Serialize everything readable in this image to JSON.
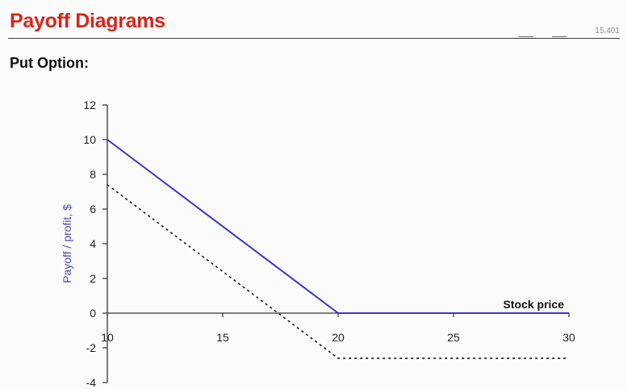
{
  "slide": {
    "title": "Payoff Diagrams",
    "course_code": "15.401",
    "subtitle": "Put Option:"
  },
  "colors": {
    "title": "#d8251c",
    "payoff_line": "#3a35c8",
    "profit_line": "#111111",
    "ylabel": "#4a4ab8"
  },
  "chart_data": {
    "type": "line",
    "title": "",
    "xlabel": "Stock price",
    "ylabel": "Payoff / profit, $",
    "xlim": [
      10,
      30
    ],
    "ylim": [
      -4,
      12
    ],
    "xticks": [
      10,
      15,
      20,
      25,
      30
    ],
    "yticks": [
      -4,
      -2,
      0,
      2,
      4,
      6,
      8,
      10,
      12
    ],
    "grid": false,
    "legend": "none",
    "series": [
      {
        "style": "solid",
        "color": "#3a35c8",
        "x": [
          10,
          20,
          30
        ],
        "y": [
          10,
          0,
          0
        ]
      },
      {
        "style": "dotted",
        "color": "#111111",
        "x": [
          10,
          20,
          30
        ],
        "y": [
          7.4,
          -2.6,
          -2.6
        ]
      }
    ]
  }
}
